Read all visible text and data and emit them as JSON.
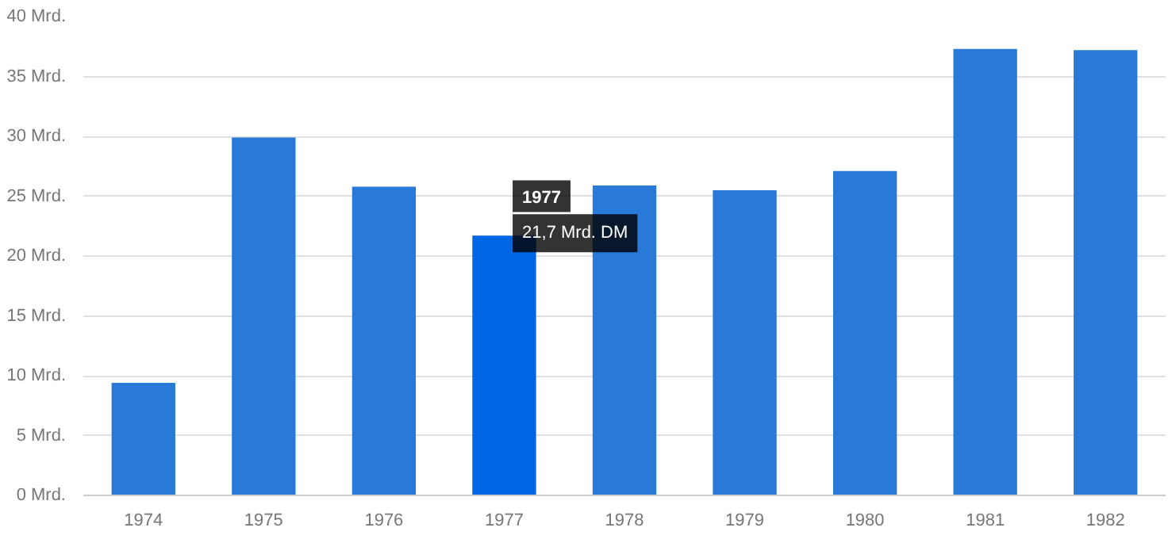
{
  "chart_data": {
    "type": "bar",
    "categories": [
      "1974",
      "1975",
      "1976",
      "1977",
      "1978",
      "1979",
      "1980",
      "1981",
      "1982"
    ],
    "values": [
      9.4,
      29.9,
      25.8,
      21.7,
      25.9,
      25.5,
      27.1,
      37.3,
      37.2
    ],
    "colors": [
      "#2979d9",
      "#2979d9",
      "#2979d9",
      "#0066e6",
      "#2979d9",
      "#2979d9",
      "#2979d9",
      "#2979d9",
      "#2979d9"
    ],
    "ylim": [
      0,
      40
    ],
    "yticks": [
      {
        "value": 0,
        "label": "0 Mrd."
      },
      {
        "value": 5,
        "label": "5 Mrd."
      },
      {
        "value": 10,
        "label": "10 Mrd."
      },
      {
        "value": 15,
        "label": "15 Mrd."
      },
      {
        "value": 20,
        "label": "20 Mrd."
      },
      {
        "value": 25,
        "label": "25 Mrd."
      },
      {
        "value": 30,
        "label": "30 Mrd."
      },
      {
        "value": 35,
        "label": "35 Mrd."
      },
      {
        "value": 40,
        "label": "40 Mrd."
      }
    ],
    "grid": "y",
    "annotations": [
      {
        "text": "21,7 Mrd. DM",
        "x": "1977",
        "y": 21.7
      }
    ]
  }
}
